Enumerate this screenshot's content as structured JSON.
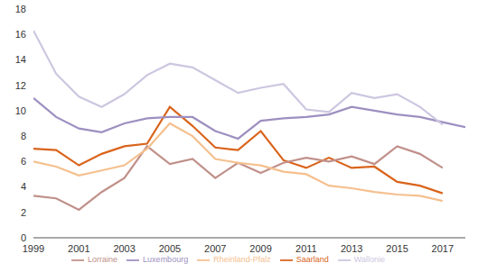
{
  "chart_data": {
    "type": "line",
    "x": [
      1999,
      2000,
      2001,
      2002,
      2003,
      2004,
      2005,
      2006,
      2007,
      2008,
      2009,
      2010,
      2011,
      2012,
      2013,
      2014,
      2015,
      2016,
      2017,
      2018
    ],
    "xlim": [
      1999,
      2018
    ],
    "xticks": [
      1999,
      2001,
      2003,
      2005,
      2007,
      2009,
      2011,
      2013,
      2015,
      2017
    ],
    "ylim": [
      0,
      18
    ],
    "yticks": [
      0,
      2,
      4,
      6,
      8,
      10,
      12,
      14,
      16,
      18
    ],
    "grid": false,
    "legend": "bottom",
    "series": [
      {
        "name": "Saarland",
        "color": "#d9641c",
        "values": [
          7.0,
          6.9,
          5.7,
          6.6,
          7.2,
          7.4,
          10.3,
          8.8,
          7.1,
          6.9,
          8.4,
          6.1,
          5.5,
          6.3,
          5.5,
          5.6,
          4.4,
          4.1,
          3.5,
          null
        ]
      },
      {
        "name": "Lorraine",
        "color": "#c0908a",
        "values": [
          3.3,
          3.1,
          2.2,
          3.6,
          4.7,
          7.2,
          5.8,
          6.2,
          4.7,
          5.9,
          5.1,
          5.9,
          6.3,
          6.0,
          6.4,
          5.8,
          7.2,
          6.6,
          5.5,
          null
        ]
      },
      {
        "name": "Luxembourg",
        "color": "#9d8fc0",
        "values": [
          11.0,
          9.5,
          8.6,
          8.3,
          9.0,
          9.4,
          9.5,
          9.5,
          8.4,
          7.8,
          9.2,
          9.4,
          9.5,
          9.7,
          10.3,
          10.0,
          9.7,
          9.5,
          9.1,
          8.7
        ]
      },
      {
        "name": "Rheinland-Pfalz",
        "color": "#f5c08f",
        "values": [
          6.0,
          5.6,
          4.9,
          5.3,
          5.7,
          7.0,
          9.0,
          8.0,
          6.2,
          5.9,
          5.7,
          5.2,
          5.0,
          4.1,
          3.9,
          3.6,
          3.4,
          3.3,
          2.9,
          null
        ]
      },
      {
        "name": "Wallonie",
        "color": "#cdc6e0",
        "values": [
          16.3,
          12.9,
          11.1,
          10.3,
          11.3,
          12.8,
          13.7,
          13.4,
          12.4,
          11.4,
          11.8,
          12.1,
          10.1,
          9.9,
          11.4,
          11.0,
          11.3,
          10.3,
          8.9,
          null
        ]
      }
    ]
  }
}
